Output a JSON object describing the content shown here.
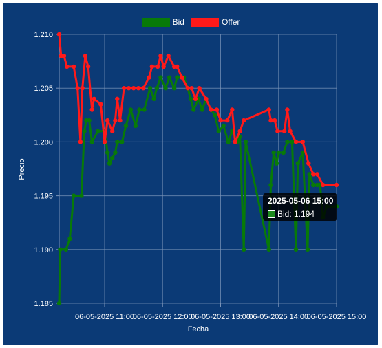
{
  "colors": {
    "background": "#0b3a76",
    "grid": "#7a93b8",
    "bid": "#087a08",
    "offer": "#ff1a1a",
    "text": "#ffffff"
  },
  "chart_data": {
    "type": "line",
    "xlabel": "Fecha",
    "ylabel": "Precio",
    "x_range": [
      "2025-05-06 10:13",
      "2025-05-06 15:00"
    ],
    "ylim": [
      1.185,
      1.21
    ],
    "y_ticks": [
      "1.185",
      "1.190",
      "1.195",
      "1.200",
      "1.205",
      "1.210"
    ],
    "x_ticks": [
      {
        "t": "2025-05-06 11:00",
        "label": "06-05-2025 11:00"
      },
      {
        "t": "2025-05-06 12:00",
        "label": "06-05-2025 12:00"
      },
      {
        "t": "2025-05-06 13:00",
        "label": "06-05-2025 13:00"
      },
      {
        "t": "2025-05-06 14:00",
        "label": "06-05-2025 14:00"
      },
      {
        "t": "2025-05-06 15:00",
        "label": "06-05-2025 15:00"
      }
    ],
    "grid": true,
    "legend_position": "top",
    "series": [
      {
        "name": "Bid",
        "color": "#087a08",
        "points": [
          [
            "2025-05-06 10:13",
            1.185
          ],
          [
            "2025-05-06 10:14",
            1.19
          ],
          [
            "2025-05-06 10:20",
            1.19
          ],
          [
            "2025-05-06 10:24",
            1.191
          ],
          [
            "2025-05-06 10:28",
            1.195
          ],
          [
            "2025-05-06 10:36",
            1.195
          ],
          [
            "2025-05-06 10:39",
            1.201
          ],
          [
            "2025-05-06 10:41",
            1.202
          ],
          [
            "2025-05-06 10:44",
            1.202
          ],
          [
            "2025-05-06 10:47",
            1.2
          ],
          [
            "2025-05-06 10:53",
            1.201
          ],
          [
            "2025-05-06 11:00",
            1.201
          ],
          [
            "2025-05-06 11:03",
            1.199
          ],
          [
            "2025-05-06 11:05",
            1.198
          ],
          [
            "2025-05-06 11:08",
            1.1985
          ],
          [
            "2025-05-06 11:11",
            1.199
          ],
          [
            "2025-05-06 11:13",
            1.2
          ],
          [
            "2025-05-06 11:18",
            1.2
          ],
          [
            "2025-05-06 11:22",
            1.2015
          ],
          [
            "2025-05-06 11:27",
            1.203
          ],
          [
            "2025-05-06 11:32",
            1.2015
          ],
          [
            "2025-05-06 11:36",
            1.203
          ],
          [
            "2025-05-06 11:41",
            1.203
          ],
          [
            "2025-05-06 11:47",
            1.205
          ],
          [
            "2025-05-06 11:51",
            1.204
          ],
          [
            "2025-05-06 11:54",
            1.205
          ],
          [
            "2025-05-06 11:58",
            1.206
          ],
          [
            "2025-05-06 12:03",
            1.205
          ],
          [
            "2025-05-06 12:07",
            1.206
          ],
          [
            "2025-05-06 12:12",
            1.205
          ],
          [
            "2025-05-06 12:15",
            1.206
          ],
          [
            "2025-05-06 12:22",
            1.206
          ],
          [
            "2025-05-06 12:26",
            1.205
          ],
          [
            "2025-05-06 12:29",
            1.204
          ],
          [
            "2025-05-06 12:32",
            1.203
          ],
          [
            "2025-05-06 12:37",
            1.204
          ],
          [
            "2025-05-06 12:41",
            1.203
          ],
          [
            "2025-05-06 12:45",
            1.204
          ],
          [
            "2025-05-06 12:50",
            1.203
          ],
          [
            "2025-05-06 12:54",
            1.2025
          ],
          [
            "2025-05-06 12:58",
            1.201
          ],
          [
            "2025-05-06 13:03",
            1.2015
          ],
          [
            "2025-05-06 13:08",
            1.2
          ],
          [
            "2025-05-06 13:12",
            1.201
          ],
          [
            "2025-05-06 13:17",
            1.2
          ],
          [
            "2025-05-06 13:20",
            1.2005
          ],
          [
            "2025-05-06 13:24",
            1.19
          ],
          [
            "2025-05-06 13:26",
            1.2
          ],
          [
            "2025-05-06 13:50",
            1.19
          ],
          [
            "2025-05-06 13:52",
            1.196
          ],
          [
            "2025-05-06 13:55",
            1.199
          ],
          [
            "2025-05-06 13:58",
            1.198
          ],
          [
            "2025-05-06 14:00",
            1.199
          ],
          [
            "2025-05-06 14:05",
            1.199
          ],
          [
            "2025-05-06 14:09",
            1.2
          ],
          [
            "2025-05-06 14:14",
            1.2
          ],
          [
            "2025-05-06 14:18",
            1.19
          ],
          [
            "2025-05-06 14:20",
            1.198
          ],
          [
            "2025-05-06 14:25",
            1.199
          ],
          [
            "2025-05-06 14:30",
            1.19
          ],
          [
            "2025-05-06 14:32",
            1.197
          ],
          [
            "2025-05-06 14:36",
            1.196
          ],
          [
            "2025-05-06 14:40",
            1.196
          ],
          [
            "2025-05-06 14:43",
            1.196
          ],
          [
            "2025-05-06 14:46",
            1.193
          ],
          [
            "2025-05-06 14:50",
            1.194
          ],
          [
            "2025-05-06 15:00",
            1.194
          ]
        ]
      },
      {
        "name": "Offer",
        "color": "#ff1a1a",
        "points": [
          [
            "2025-05-06 10:13",
            1.21
          ],
          [
            "2025-05-06 10:15",
            1.208
          ],
          [
            "2025-05-06 10:18",
            1.208
          ],
          [
            "2025-05-06 10:21",
            1.207
          ],
          [
            "2025-05-06 10:28",
            1.207
          ],
          [
            "2025-05-06 10:32",
            1.205
          ],
          [
            "2025-05-06 10:35",
            1.2
          ],
          [
            "2025-05-06 10:37",
            1.205
          ],
          [
            "2025-05-06 10:40",
            1.208
          ],
          [
            "2025-05-06 10:43",
            1.207
          ],
          [
            "2025-05-06 10:47",
            1.203
          ],
          [
            "2025-05-06 10:49",
            1.204
          ],
          [
            "2025-05-06 10:56",
            1.2035
          ],
          [
            "2025-05-06 11:00",
            1.2
          ],
          [
            "2025-05-06 11:03",
            1.202
          ],
          [
            "2025-05-06 11:08",
            1.201
          ],
          [
            "2025-05-06 11:11",
            1.202
          ],
          [
            "2025-05-06 11:13",
            1.204
          ],
          [
            "2025-05-06 11:16",
            1.202
          ],
          [
            "2025-05-06 11:20",
            1.205
          ],
          [
            "2025-05-06 11:25",
            1.205
          ],
          [
            "2025-05-06 11:30",
            1.205
          ],
          [
            "2025-05-06 11:35",
            1.205
          ],
          [
            "2025-05-06 11:40",
            1.205
          ],
          [
            "2025-05-06 11:46",
            1.206
          ],
          [
            "2025-05-06 11:49",
            1.207
          ],
          [
            "2025-05-06 11:55",
            1.207
          ],
          [
            "2025-05-06 11:58",
            1.208
          ],
          [
            "2025-05-06 12:01",
            1.207
          ],
          [
            "2025-05-06 12:06",
            1.208
          ],
          [
            "2025-05-06 12:12",
            1.207
          ],
          [
            "2025-05-06 12:15",
            1.207
          ],
          [
            "2025-05-06 12:20",
            1.206
          ],
          [
            "2025-05-06 12:26",
            1.205
          ],
          [
            "2025-05-06 12:30",
            1.205
          ],
          [
            "2025-05-06 12:34",
            1.204
          ],
          [
            "2025-05-06 12:38",
            1.205
          ],
          [
            "2025-05-06 12:45",
            1.204
          ],
          [
            "2025-05-06 12:50",
            1.203
          ],
          [
            "2025-05-06 12:56",
            1.203
          ],
          [
            "2025-05-06 13:00",
            1.202
          ],
          [
            "2025-05-06 13:07",
            1.202
          ],
          [
            "2025-05-06 13:12",
            1.203
          ],
          [
            "2025-05-06 13:15",
            1.2
          ],
          [
            "2025-05-06 13:20",
            1.201
          ],
          [
            "2025-05-06 13:24",
            1.202
          ],
          [
            "2025-05-06 13:50",
            1.203
          ],
          [
            "2025-05-06 13:52",
            1.202
          ],
          [
            "2025-05-06 13:56",
            1.202
          ],
          [
            "2025-05-06 13:59",
            1.201
          ],
          [
            "2025-05-06 14:06",
            1.201
          ],
          [
            "2025-05-06 14:09",
            1.203
          ],
          [
            "2025-05-06 14:12",
            1.201
          ],
          [
            "2025-05-06 14:18",
            1.2
          ],
          [
            "2025-05-06 14:25",
            1.2
          ],
          [
            "2025-05-06 14:31",
            1.198
          ],
          [
            "2025-05-06 14:36",
            1.197
          ],
          [
            "2025-05-06 14:40",
            1.197
          ],
          [
            "2025-05-06 14:46",
            1.196
          ],
          [
            "2025-05-06 15:00",
            1.196
          ]
        ]
      }
    ],
    "tooltip": {
      "title": "2025-05-06 15:00",
      "series": "Bid",
      "value": "1.194"
    }
  },
  "legend": {
    "bid_label": "Bid",
    "offer_label": "Offer"
  },
  "tooltip": {
    "title": "2025-05-06 15:00",
    "line": "Bid: 1.194"
  }
}
